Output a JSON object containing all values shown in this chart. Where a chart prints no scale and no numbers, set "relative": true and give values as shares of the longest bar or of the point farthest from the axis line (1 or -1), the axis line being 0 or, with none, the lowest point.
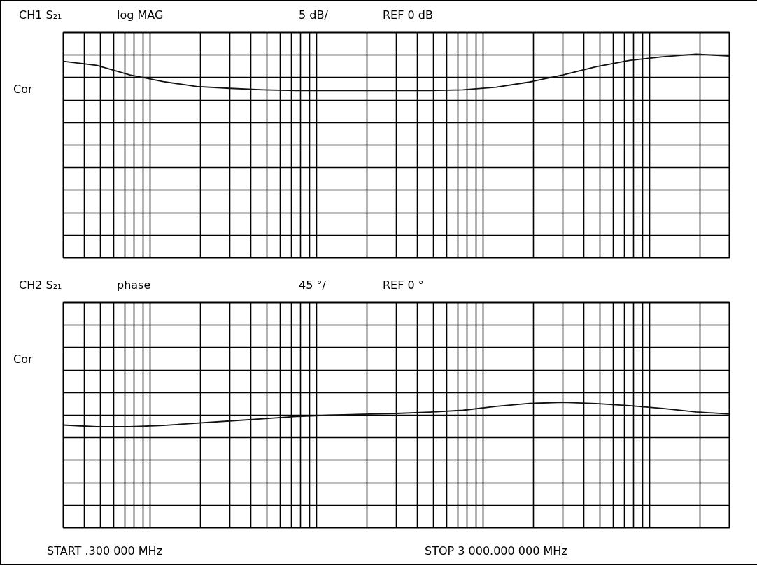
{
  "chart_data": [
    {
      "type": "line",
      "title": "CH1 S₂₁",
      "subtitle": "log MAG",
      "annotations": [
        "5 dB/",
        "REF 0 dB",
        "Cor"
      ],
      "categories": [
        null,
        null,
        null,
        null,
        null,
        null,
        null,
        null,
        null,
        null,
        null,
        null,
        null,
        null,
        null,
        null,
        null,
        null,
        null,
        null,
        null
      ],
      "series": [
        {
          "color": "#111111",
          "values": [
            0.965,
            0.945,
            0.898,
            0.865,
            0.841,
            0.832,
            0.825,
            0.821,
            0.821,
            0.821,
            0.821,
            0.821,
            0.825,
            0.838,
            0.863,
            0.898,
            0.938,
            0.969,
            0.987,
            1,
            0.991
          ]
        }
      ],
      "relative": true,
      "grid": true,
      "tick_labels": false
    },
    {
      "type": "line",
      "title": "CH2 S₂₁",
      "subtitle": "phase",
      "annotations": [
        "45 °/",
        "REF 0 °",
        "Cor",
        "START    .300 000 MHz",
        "STOP 3 000.000 000 MHz"
      ],
      "categories": [
        null,
        null,
        null,
        null,
        null,
        null,
        null,
        null,
        null,
        null,
        null,
        null,
        null,
        null,
        null,
        null,
        null,
        null,
        null,
        null,
        null
      ],
      "series": [
        {
          "color": "#111111",
          "values": [
            0.82,
            0.806,
            0.806,
            0.816,
            0.835,
            0.852,
            0.869,
            0.887,
            0.898,
            0.906,
            0.912,
            0.922,
            0.937,
            0.968,
            0.992,
            1,
            0.991,
            0.974,
            0.952,
            0.924,
            0.907
          ]
        }
      ],
      "relative": true,
      "grid": true,
      "tick_labels": false
    }
  ]
}
